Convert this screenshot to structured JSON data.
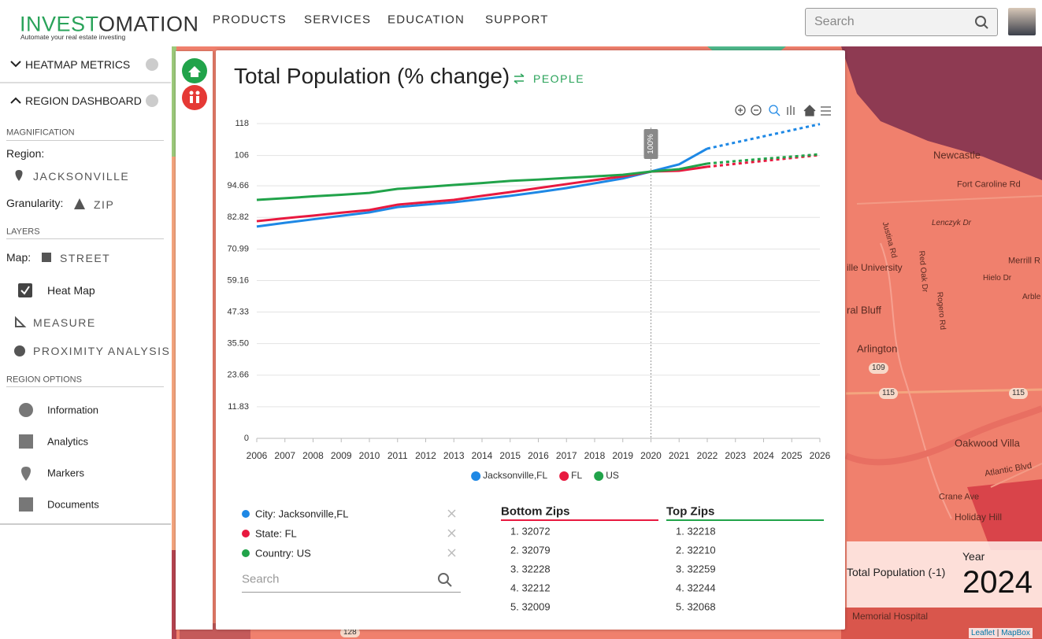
{
  "header": {
    "logo_a": "INVEST",
    "logo_b": "OMATION",
    "tagline": "Automate your real estate investing",
    "nav": [
      "PRODUCTS",
      "SERVICES",
      "EDUCATION",
      "SUPPORT"
    ],
    "search": "Search"
  },
  "sidebar": {
    "heatmap_metrics": "HEATMAP METRICS",
    "region_dashboard": "REGION DASHBOARD",
    "magnification": "MAGNIFICATION",
    "region_label": "Region:",
    "region": "JACKSONVILLE",
    "granularity_label": "Granularity:",
    "granularity": "ZIP",
    "layers": "LAYERS",
    "map_label": "Map:",
    "map": "STREET",
    "heat_map": "Heat Map",
    "measure": "MEASURE",
    "proximity": "PROXIMITY ANALYSIS",
    "region_options": "REGION OPTIONS",
    "options": [
      "Information",
      "Analytics",
      "Markers",
      "Documents"
    ]
  },
  "panel": {
    "title": "Total Population (% change)",
    "tag": "PEOPLE",
    "entries": [
      "City: Jacksonville,FL",
      "State: FL",
      "Country: US"
    ],
    "search": "Search",
    "bottom_zips": {
      "title": "Bottom Zips",
      "items": [
        "1. 32072",
        "2. 32079",
        "3. 32228",
        "4. 32212",
        "5. 32009"
      ]
    },
    "top_zips": {
      "title": "Top Zips",
      "items": [
        "1. 32218",
        "2. 32210",
        "3. 32259",
        "4. 32244",
        "5. 32068"
      ]
    }
  },
  "chart_data": {
    "type": "line",
    "x": [
      2006,
      2007,
      2008,
      2009,
      2010,
      2011,
      2012,
      2013,
      2014,
      2015,
      2016,
      2017,
      2018,
      2019,
      2020,
      2021,
      2022,
      2023,
      2024,
      2025,
      2026
    ],
    "xlim": [
      2006,
      2026
    ],
    "forecast_start": 2022,
    "annotation": {
      "x": 2020,
      "label": "100%"
    },
    "series": [
      {
        "name": "Jacksonville,FL",
        "color": "#1e88e5",
        "values": [
          79.4,
          80.8,
          82.1,
          83.4,
          84.7,
          86.7,
          87.6,
          88.5,
          89.7,
          90.9,
          92.3,
          93.8,
          95.6,
          97.4,
          100,
          102.7,
          108.6,
          110.9,
          113.2,
          115.5,
          117.8
        ]
      },
      {
        "name": "FL",
        "color": "#e8193f",
        "values": [
          81.4,
          82.5,
          83.5,
          84.6,
          85.6,
          87.6,
          88.5,
          89.4,
          90.9,
          92.3,
          93.8,
          95.3,
          96.8,
          98.2,
          100,
          100.3,
          101.8,
          102.9,
          104.0,
          105.1,
          106.2
        ]
      },
      {
        "name": "US",
        "color": "#21a34a",
        "values": [
          89.4,
          90.0,
          90.7,
          91.3,
          92.0,
          93.5,
          94.2,
          95.0,
          95.7,
          96.5,
          97.0,
          97.6,
          98.2,
          98.8,
          100,
          100.9,
          103.0,
          103.9,
          104.8,
          105.6,
          106.5
        ]
      }
    ],
    "ylim": [
      0,
      118
    ],
    "yticks": [
      0,
      11.83,
      23.66,
      {
        "value": 35.5,
        "label": "35.50"
      },
      47.33,
      59.16,
      70.99,
      82.82,
      94.66,
      106,
      118
    ],
    "grid": true,
    "legend": "bottom"
  },
  "map": {
    "labels": [
      "Newcastle",
      "Fort Caroline Rd",
      "Lenczyk Dr",
      "Justina Rd",
      "Red Oak Dr",
      "Merrill R",
      "ille University",
      "Hielo Dr",
      "Arble",
      "Rogero Rd",
      "ral Bluff",
      "Arlington",
      "109",
      "115",
      "115",
      "Oakwood Villa",
      "Atlantic Blvd",
      "Crane Ave",
      "Holiday Hill",
      "Memorial Hospital",
      "128"
    ],
    "legend_metric": "Total Population (-1)",
    "year_label": "Year",
    "year": "2024",
    "attribution_a": "Leaflet",
    "attribution_b": "MapBox"
  }
}
